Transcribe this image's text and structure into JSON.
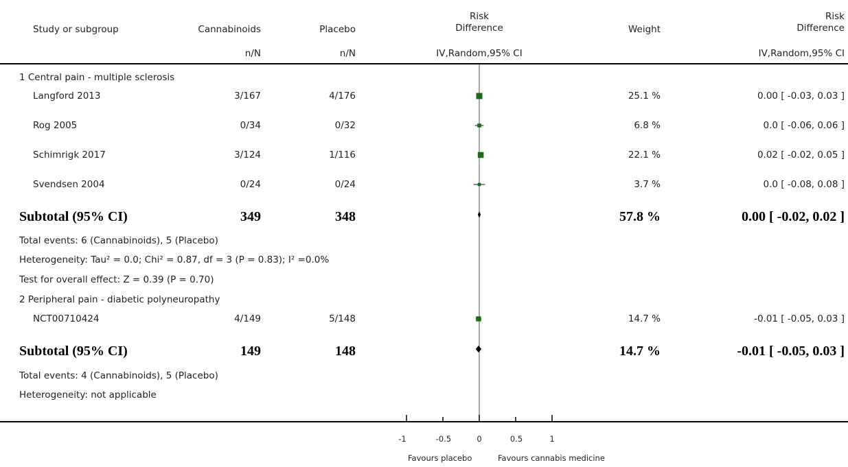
{
  "header": {
    "study_label": "Study or subgroup",
    "group1_label": "Cannabinoids",
    "group2_label": "Placebo",
    "plot_label_line1": "Risk",
    "plot_label_line2": "Difference",
    "weight_label": "Weight",
    "effect_label_line1": "Risk",
    "effect_label_line2": "Difference",
    "group1_sub": "n/N",
    "group2_sub": "n/N",
    "plot_sub": "IV,Random,95% CI",
    "effect_sub": "IV,Random,95% CI"
  },
  "subgroups": [
    {
      "title": "1 Central pain - multiple sclerosis",
      "studies": [
        {
          "name": "Langford 2013",
          "g1": "3/167",
          "g2": "4/176",
          "weight": "25.1 %",
          "ci": "0.00 [ -0.03, 0.03 ]"
        },
        {
          "name": "Rog 2005",
          "g1": "0/34",
          "g2": "0/32",
          "weight": "6.8 %",
          "ci": "0.0 [ -0.06, 0.06 ]"
        },
        {
          "name": "Schimrigk 2017",
          "g1": "3/124",
          "g2": "1/116",
          "weight": "22.1 %",
          "ci": "0.02 [ -0.02, 0.05 ]"
        },
        {
          "name": "Svendsen 2004",
          "g1": "0/24",
          "g2": "0/24",
          "weight": "3.7 %",
          "ci": "0.0 [ -0.08, 0.08 ]"
        }
      ],
      "subtotal": {
        "label": "Subtotal (95% CI)",
        "g1": "349",
        "g2": "348",
        "weight": "57.8 %",
        "ci": "0.00 [ -0.02, 0.02 ]"
      },
      "notes": [
        "Total events: 6 (Cannabinoids), 5 (Placebo)",
        "Heterogeneity: Tau² = 0.0; Chi² = 0.87, df = 3 (P = 0.83); I² =0.0%",
        "Test for overall effect: Z = 0.39 (P = 0.70)"
      ]
    },
    {
      "title": "2 Peripheral pain - diabetic polyneuropathy",
      "studies": [
        {
          "name": "NCT00710424",
          "g1": "4/149",
          "g2": "5/148",
          "weight": "14.7 %",
          "ci": "-0.01 [ -0.05, 0.03 ]"
        }
      ],
      "subtotal": {
        "label": "Subtotal (95% CI)",
        "g1": "149",
        "g2": "148",
        "weight": "14.7 %",
        "ci": "-0.01 [ -0.05, 0.03 ]"
      },
      "notes": [
        "Total events: 4 (Cannabinoids), 5 (Placebo)",
        "Heterogeneity: not applicable"
      ]
    }
  ],
  "axis": {
    "tick_labels": [
      "-1",
      "-0.5",
      "0",
      "0.5",
      "1"
    ],
    "favours_left": "Favours placebo",
    "favours_right": "Favours cannabis medicine"
  },
  "chart_data": {
    "type": "forest",
    "xlim": [
      -1,
      1
    ],
    "ticks": [
      -1,
      -0.5,
      0,
      0.5,
      1
    ],
    "marker_color": "#1e6b1e",
    "studies": [
      {
        "name": "Langford 2013",
        "est": 0.0,
        "lo": -0.03,
        "hi": 0.03,
        "weight": 25.1
      },
      {
        "name": "Rog 2005",
        "est": 0.0,
        "lo": -0.06,
        "hi": 0.06,
        "weight": 6.8
      },
      {
        "name": "Schimrigk 2017",
        "est": 0.02,
        "lo": -0.02,
        "hi": 0.05,
        "weight": 22.1
      },
      {
        "name": "Svendsen 2004",
        "est": 0.0,
        "lo": -0.08,
        "hi": 0.08,
        "weight": 3.7
      },
      {
        "name": "NCT00710424",
        "est": -0.01,
        "lo": -0.05,
        "hi": 0.03,
        "weight": 14.7
      }
    ],
    "subtotals": [
      {
        "name": "Subtotal 1",
        "est": 0.0,
        "lo": -0.02,
        "hi": 0.02
      },
      {
        "name": "Subtotal 2",
        "est": -0.01,
        "lo": -0.05,
        "hi": 0.03
      }
    ]
  }
}
